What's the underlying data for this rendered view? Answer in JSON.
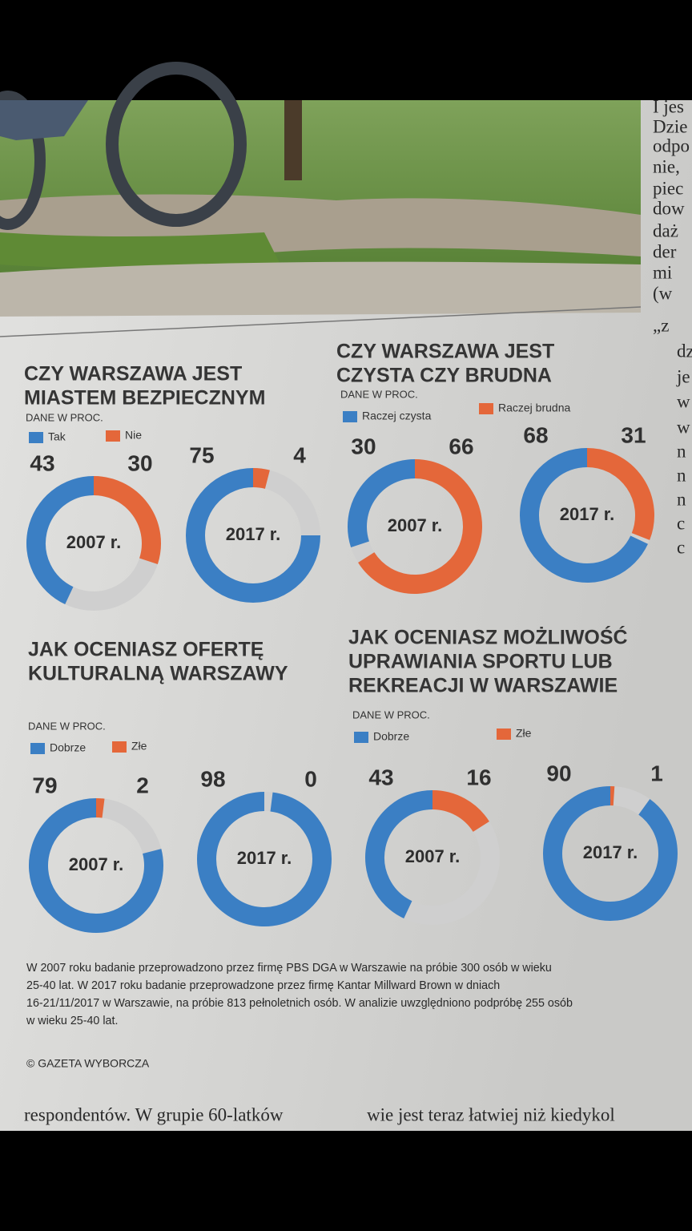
{
  "side_column": [
    "I jes",
    "Dzie",
    "odpo",
    "nie,",
    "piec",
    "dow",
    "daż",
    "der",
    "mi",
    "(w",
    "„z",
    "dz",
    "je",
    "w",
    "w",
    "n",
    "n",
    "n",
    "c",
    "c"
  ],
  "chart_data": [
    {
      "type": "donut",
      "title": [
        "CZY WARSZAWA JEST",
        "MIASTEM BEZPIECZNYM"
      ],
      "subtitle": "DANE W PROC.",
      "categories": [
        "2007 r.",
        "2017 r."
      ],
      "series": [
        {
          "name": "Tak",
          "color": "#3b7fc4",
          "values": [
            43,
            75
          ]
        },
        {
          "name": "Nie",
          "color": "#e4673a",
          "values": [
            30,
            4
          ]
        }
      ]
    },
    {
      "type": "donut",
      "title": [
        "CZY  WARSZAWA JEST",
        "CZYSTA CZY BRUDNA"
      ],
      "subtitle": "DANE W PROC.",
      "categories": [
        "2007 r.",
        "2017 r."
      ],
      "series": [
        {
          "name": "Raczej czysta",
          "color": "#3b7fc4",
          "values": [
            30,
            68
          ]
        },
        {
          "name": "Raczej brudna",
          "color": "#e4673a",
          "values": [
            66,
            31
          ]
        }
      ]
    },
    {
      "type": "donut",
      "title": [
        "JAK OCENIASZ OFERTĘ",
        "KULTURALNĄ WARSZAWY"
      ],
      "subtitle": "DANE W PROC.",
      "categories": [
        "2007 r.",
        "2017 r."
      ],
      "series": [
        {
          "name": "Dobrze",
          "color": "#3b7fc4",
          "values": [
            79,
            98
          ]
        },
        {
          "name": "Złe",
          "color": "#e4673a",
          "values": [
            2,
            0
          ]
        }
      ]
    },
    {
      "type": "donut",
      "title": [
        "JAK OCENIASZ MOŻLIWOŚĆ",
        "UPRAWIANIA SPORTU LUB",
        "REKREACJI W WARSZAWIE"
      ],
      "subtitle": "DANE W PROC.",
      "categories": [
        "2007 r.",
        "2017 r."
      ],
      "series": [
        {
          "name": "Dobrze",
          "color": "#3b7fc4",
          "values": [
            43,
            90
          ]
        },
        {
          "name": "Złe",
          "color": "#e4673a",
          "values": [
            16,
            1
          ]
        }
      ]
    }
  ],
  "footnote": [
    "W 2007 roku badanie przeprowadzono przez firmę PBS DGA w Warszawie na próbie 300 osób w wieku",
    "25-40 lat. W 2017 roku badanie przeprowadzone przez firmę Kantar Millward Brown w dniach",
    "16-21/11/2017 w Warszawie, na próbie 813 pełnoletnich osób. W analizie uwzględniono podpróbę 255 osób",
    "w wieku 25-40 lat."
  ],
  "copyright": "© GAZETA WYBORCZA",
  "bottom_text": [
    "respondentów. W grupie 60-latków",
    "wie jest teraz łatwiej niż kiedykol"
  ]
}
